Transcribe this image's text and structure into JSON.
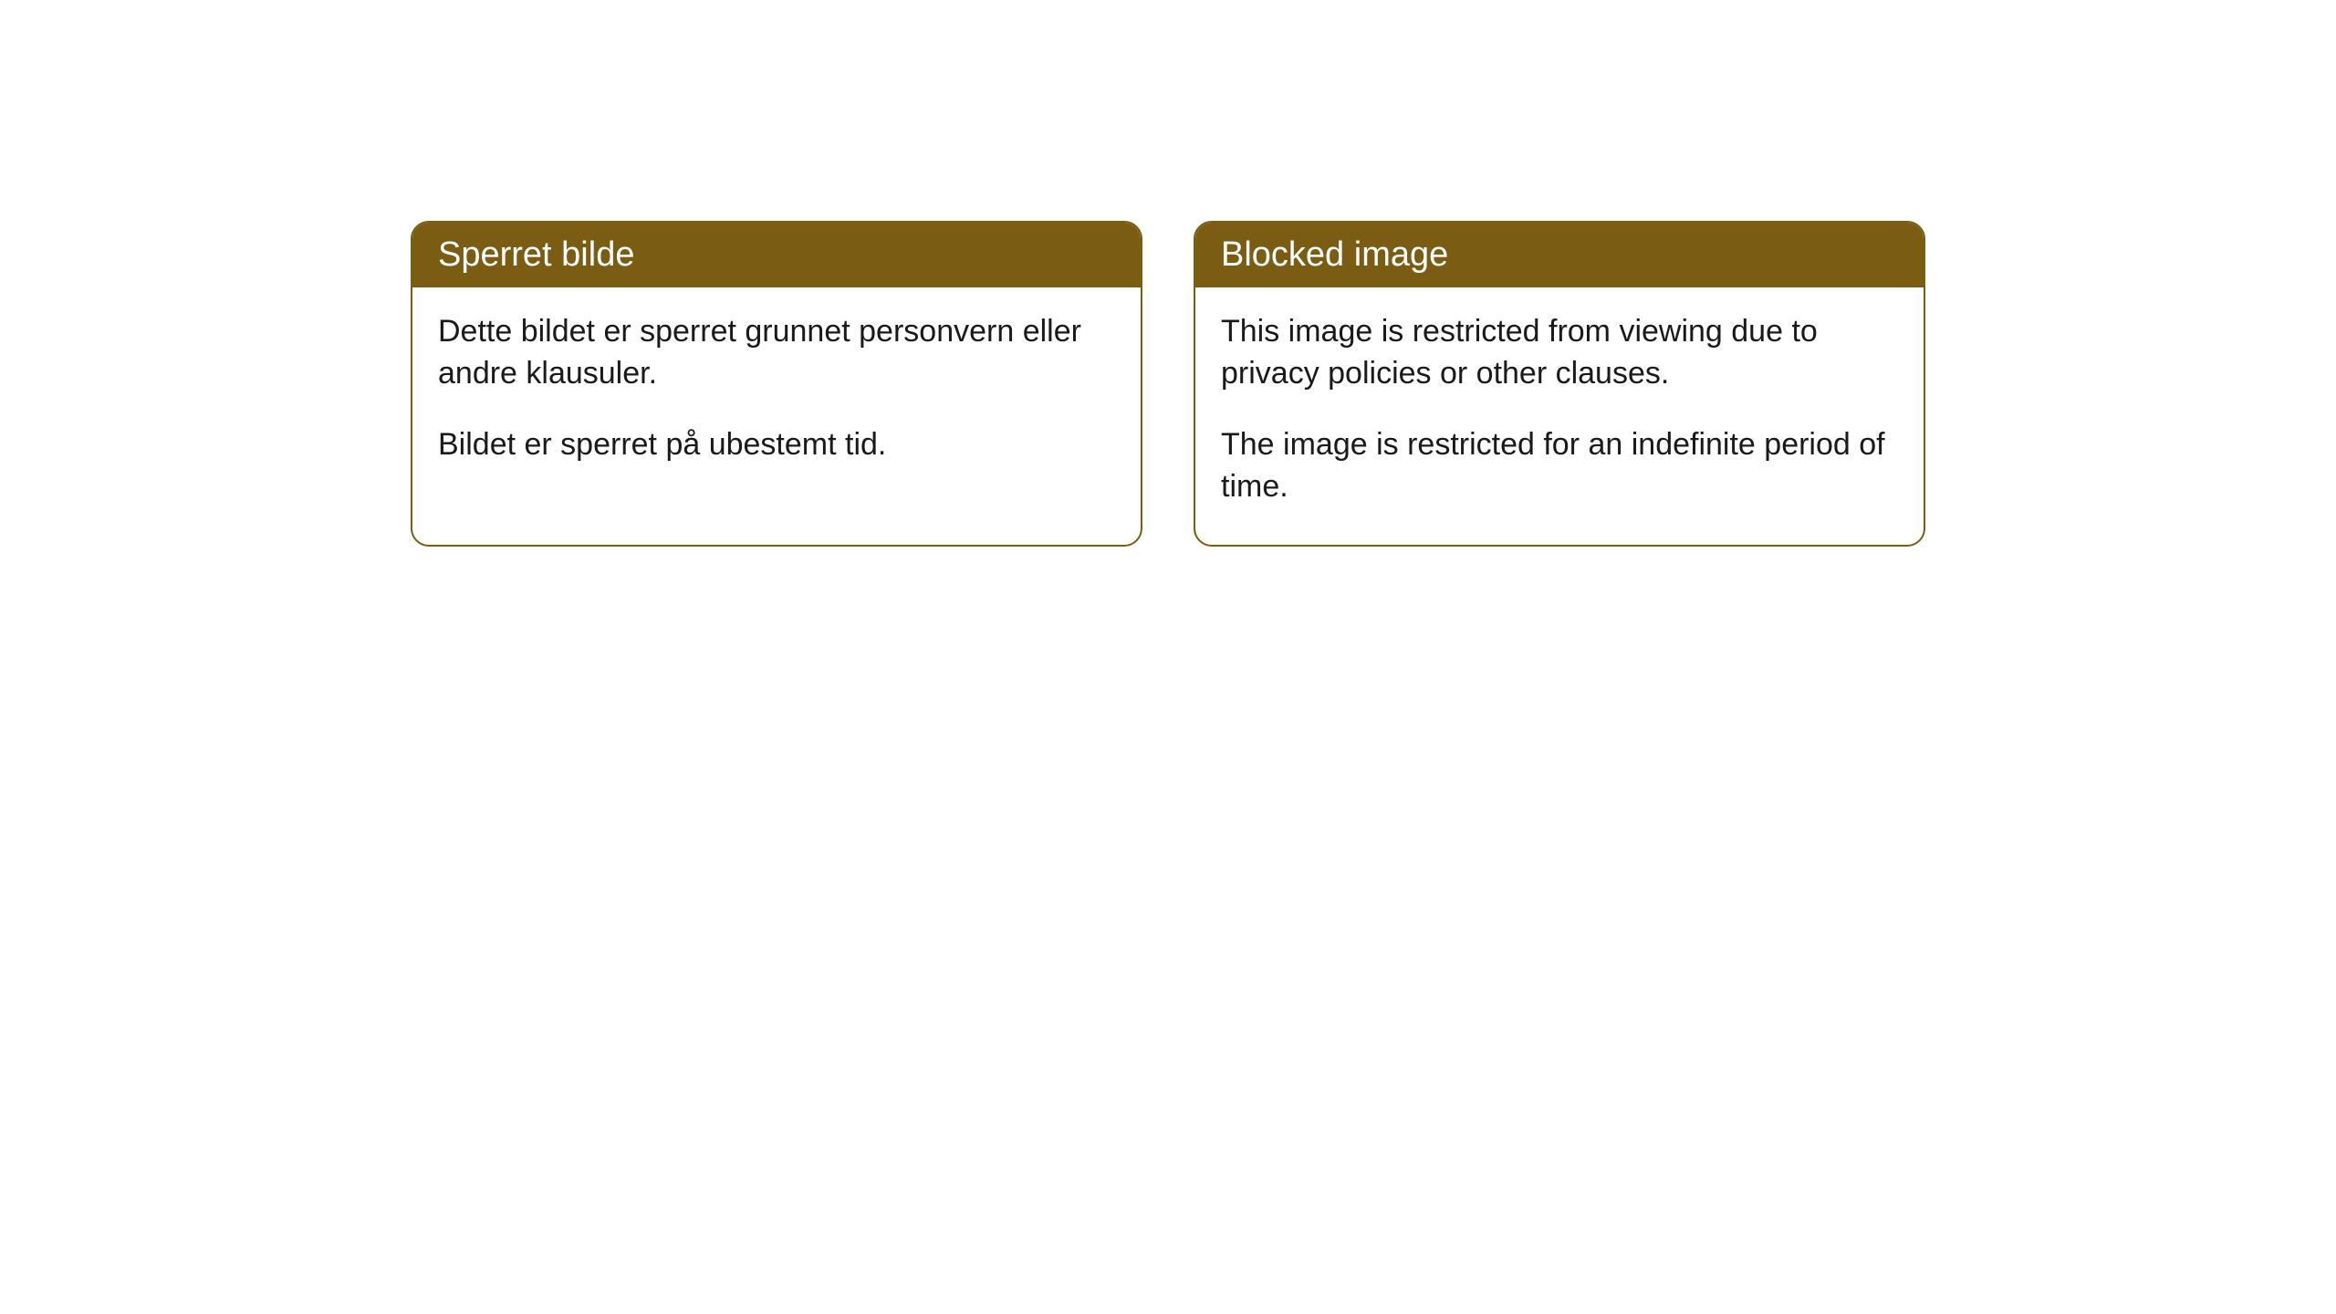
{
  "cards": [
    {
      "title": "Sperret bilde",
      "paragraph1": "Dette bildet er sperret grunnet personvern eller andre klausuler.",
      "paragraph2": "Bildet er sperret på ubestemt tid."
    },
    {
      "title": "Blocked image",
      "paragraph1": "This image is restricted from viewing due to privacy policies or other clauses.",
      "paragraph2": "The image is restricted for an indefinite period of time."
    }
  ],
  "styling": {
    "header_background": "#7a5d13",
    "header_text_color": "#ffffff",
    "border_color": "#7a5d13",
    "body_background": "#ffffff",
    "body_text_color": "#1a1a1a",
    "border_radius": 20,
    "header_fontsize": 38,
    "body_fontsize": 34
  }
}
